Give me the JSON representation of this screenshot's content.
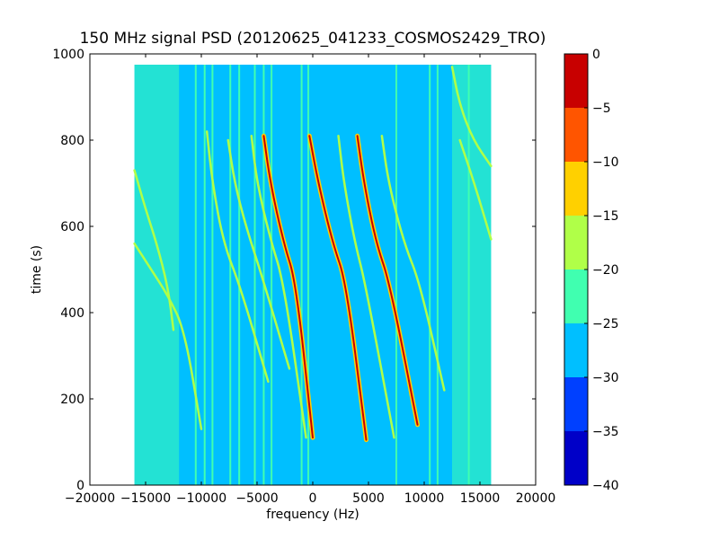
{
  "chart_data": {
    "type": "heatmap",
    "title": "150 MHz signal PSD (20120625_041233_COSMOS2429_TRO)",
    "xlabel": "frequency (Hz)",
    "ylabel": "time (s)",
    "xlim": [
      -20000,
      20000
    ],
    "ylim": [
      0,
      1000
    ],
    "x_ticks": [
      -20000,
      -15000,
      -10000,
      -5000,
      0,
      5000,
      10000,
      15000,
      20000
    ],
    "y_ticks": [
      0,
      200,
      400,
      600,
      800,
      1000
    ],
    "data_extent": {
      "x": [
        -16000,
        16000
      ],
      "y": [
        0,
        975
      ]
    },
    "colorbar": {
      "range": [
        -40,
        0
      ],
      "ticks": [
        0,
        -5,
        -10,
        -15,
        -20,
        -25,
        -30,
        -35,
        -40
      ],
      "levels": [
        {
          "from": -40,
          "to": -35,
          "color": "#0000c8"
        },
        {
          "from": -35,
          "to": -30,
          "color": "#0040ff"
        },
        {
          "from": -30,
          "to": -25,
          "color": "#00bfff"
        },
        {
          "from": -25,
          "to": -20,
          "color": "#40ffb0"
        },
        {
          "from": -20,
          "to": -15,
          "color": "#b0ff48"
        },
        {
          "from": -15,
          "to": -10,
          "color": "#ffd000"
        },
        {
          "from": -10,
          "to": -5,
          "color": "#ff5500"
        },
        {
          "from": -5,
          "to": 0,
          "color": "#c80000"
        }
      ]
    },
    "background_level": -27.5,
    "edge_noise_level": -22.5,
    "vertical_lines_hz": [
      -10500,
      -9700,
      -9000,
      -7400,
      -6600,
      -5200,
      -4400,
      -3700,
      -1000,
      -400,
      7500,
      10500,
      11200,
      14000
    ],
    "tracks": [
      {
        "level": -2.5,
        "points": [
          [
            -4400,
            810
          ],
          [
            -3800,
            700
          ],
          [
            -2600,
            560
          ],
          [
            -1500,
            470
          ],
          [
            0,
            110
          ]
        ]
      },
      {
        "level": -2.5,
        "points": [
          [
            -300,
            810
          ],
          [
            500,
            700
          ],
          [
            1800,
            560
          ],
          [
            3000,
            470
          ],
          [
            4800,
            105
          ]
        ]
      },
      {
        "level": -2.5,
        "points": [
          [
            4000,
            810
          ],
          [
            4600,
            700
          ],
          [
            5700,
            560
          ],
          [
            6900,
            470
          ],
          [
            9400,
            140
          ]
        ]
      },
      {
        "level": -17.5,
        "points": [
          [
            -5500,
            810
          ],
          [
            -5000,
            700
          ],
          [
            -3800,
            570
          ],
          [
            -2600,
            470
          ],
          [
            -600,
            110
          ]
        ]
      },
      {
        "level": -17.5,
        "points": [
          [
            2300,
            810
          ],
          [
            2800,
            700
          ],
          [
            3800,
            560
          ],
          [
            4700,
            470
          ],
          [
            7300,
            110
          ]
        ]
      },
      {
        "level": -17.5,
        "points": [
          [
            6200,
            810
          ],
          [
            6800,
            700
          ],
          [
            8200,
            560
          ],
          [
            9600,
            470
          ],
          [
            11800,
            220
          ]
        ]
      },
      {
        "level": -17.5,
        "points": [
          [
            -9500,
            820
          ],
          [
            -9000,
            700
          ],
          [
            -8000,
            560
          ],
          [
            -6500,
            460
          ],
          [
            -4000,
            240
          ]
        ]
      },
      {
        "level": -17.5,
        "points": [
          [
            -7600,
            800
          ],
          [
            -7000,
            700
          ],
          [
            -6000,
            600
          ],
          [
            -4500,
            480
          ],
          [
            -2100,
            270
          ]
        ]
      },
      {
        "level": -17.5,
        "points": [
          [
            -16000,
            730
          ],
          [
            -15000,
            640
          ],
          [
            -14000,
            560
          ],
          [
            -13000,
            460
          ],
          [
            -12500,
            360
          ]
        ]
      },
      {
        "level": -17.5,
        "points": [
          [
            -16000,
            560
          ],
          [
            -14500,
            500
          ],
          [
            -13000,
            440
          ],
          [
            -11500,
            360
          ],
          [
            -10000,
            130
          ]
        ]
      },
      {
        "level": -17.5,
        "points": [
          [
            12500,
            970
          ],
          [
            13200,
            880
          ],
          [
            14400,
            800
          ],
          [
            16000,
            740
          ]
        ]
      },
      {
        "level": -17.5,
        "points": [
          [
            13200,
            800
          ],
          [
            14500,
            700
          ],
          [
            16000,
            570
          ]
        ]
      }
    ]
  }
}
